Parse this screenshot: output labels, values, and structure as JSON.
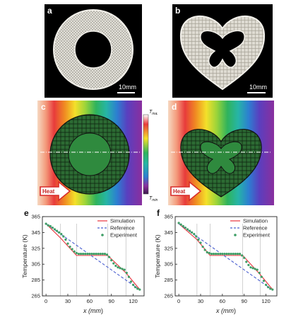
{
  "panels": {
    "a": {
      "label": "a",
      "scale_bar": "10mm"
    },
    "b": {
      "label": "b",
      "scale_bar": "10mm"
    },
    "c": {
      "label": "c",
      "arrow_text": "Heat",
      "colorbar": {
        "max": "T",
        "max_sub": "max",
        "min": "T",
        "min_sub": "min"
      }
    },
    "d": {
      "label": "d",
      "arrow_text": "Heat"
    },
    "e": {
      "label": "e"
    },
    "f": {
      "label": "f"
    }
  },
  "colors": {
    "simulation": "#e8323c",
    "reference": "#4a5fd0",
    "experiment": "#3e9e66",
    "guide": "#bdbdbd"
  },
  "chart_data": [
    {
      "type": "line",
      "panel": "e",
      "title": "",
      "xlabel": "x (mm)",
      "xlabel_parts": {
        "prefix": "x (",
        "unit": "mm",
        "suffix": ")"
      },
      "ylabel": "Temperature (K)",
      "xlim": [
        -5,
        135
      ],
      "ylim": [
        265,
        365
      ],
      "xticks": [
        0,
        30,
        60,
        90,
        120
      ],
      "yticks": [
        265,
        285,
        305,
        325,
        345,
        365
      ],
      "guides_x": [
        20,
        42,
        85,
        110
      ],
      "legend": {
        "position": "top-right",
        "entries": [
          "Simulation",
          "Reference",
          "Experiment"
        ]
      },
      "series": [
        {
          "name": "Simulation",
          "style": "solid",
          "x": [
            0,
            20,
            42,
            85,
            110,
            130
          ],
          "y": [
            356,
            338,
            316,
            316,
            294,
            272
          ]
        },
        {
          "name": "Reference",
          "style": "dashed",
          "x": [
            0,
            130
          ],
          "y": [
            356,
            272
          ]
        },
        {
          "name": "Experiment",
          "style": "dots",
          "x": [
            0,
            3,
            6,
            9,
            12,
            15,
            18,
            21,
            24,
            27,
            30,
            33,
            36,
            39,
            42,
            45,
            48,
            51,
            54,
            57,
            60,
            63,
            66,
            69,
            72,
            75,
            78,
            81,
            84,
            87,
            90,
            93,
            96,
            99,
            102,
            105,
            108,
            111,
            114,
            117,
            120,
            123,
            126,
            129
          ],
          "y": [
            356,
            354,
            353,
            351,
            349,
            347,
            345,
            343,
            340,
            336,
            331,
            327,
            324,
            321,
            319,
            318,
            318,
            318,
            318,
            318,
            318,
            318,
            318,
            318,
            318,
            318,
            318,
            318,
            317,
            314,
            310,
            306,
            303,
            301,
            300,
            299,
            298,
            294,
            289,
            283,
            279,
            276,
            274,
            273
          ]
        }
      ]
    },
    {
      "type": "line",
      "panel": "f",
      "title": "",
      "xlabel": "x (mm)",
      "xlabel_parts": {
        "prefix": "x (",
        "unit": "mm",
        "suffix": ")"
      },
      "ylabel": "Temperature (K)",
      "xlim": [
        -5,
        135
      ],
      "ylim": [
        265,
        365
      ],
      "xticks": [
        0,
        30,
        60,
        90,
        120
      ],
      "yticks": [
        265,
        285,
        305,
        325,
        345,
        365
      ],
      "guides_x": [
        25,
        43,
        88,
        112
      ],
      "legend": {
        "position": "top-right",
        "entries": [
          "Simulation",
          "Reference",
          "Experiment"
        ]
      },
      "series": [
        {
          "name": "Simulation",
          "style": "solid",
          "x": [
            0,
            25,
            43,
            88,
            112,
            130
          ],
          "y": [
            356,
            336,
            316,
            316,
            292,
            272
          ]
        },
        {
          "name": "Reference",
          "style": "dashed",
          "x": [
            0,
            130
          ],
          "y": [
            356,
            272
          ]
        },
        {
          "name": "Experiment",
          "style": "dots",
          "x": [
            0,
            3,
            6,
            9,
            12,
            15,
            18,
            21,
            24,
            27,
            30,
            33,
            36,
            39,
            42,
            45,
            48,
            51,
            54,
            57,
            60,
            63,
            66,
            69,
            72,
            75,
            78,
            81,
            84,
            87,
            90,
            93,
            96,
            99,
            102,
            105,
            108,
            111,
            114,
            117,
            120,
            123,
            126,
            129
          ],
          "y": [
            357,
            355,
            353,
            351,
            349,
            347,
            345,
            343,
            340,
            336,
            332,
            327,
            323,
            320,
            319,
            318,
            318,
            318,
            318,
            318,
            318,
            318,
            318,
            318,
            318,
            318,
            318,
            318,
            318,
            316,
            313,
            308,
            304,
            301,
            300,
            299,
            298,
            294,
            289,
            284,
            279,
            276,
            274,
            273
          ]
        }
      ]
    }
  ]
}
